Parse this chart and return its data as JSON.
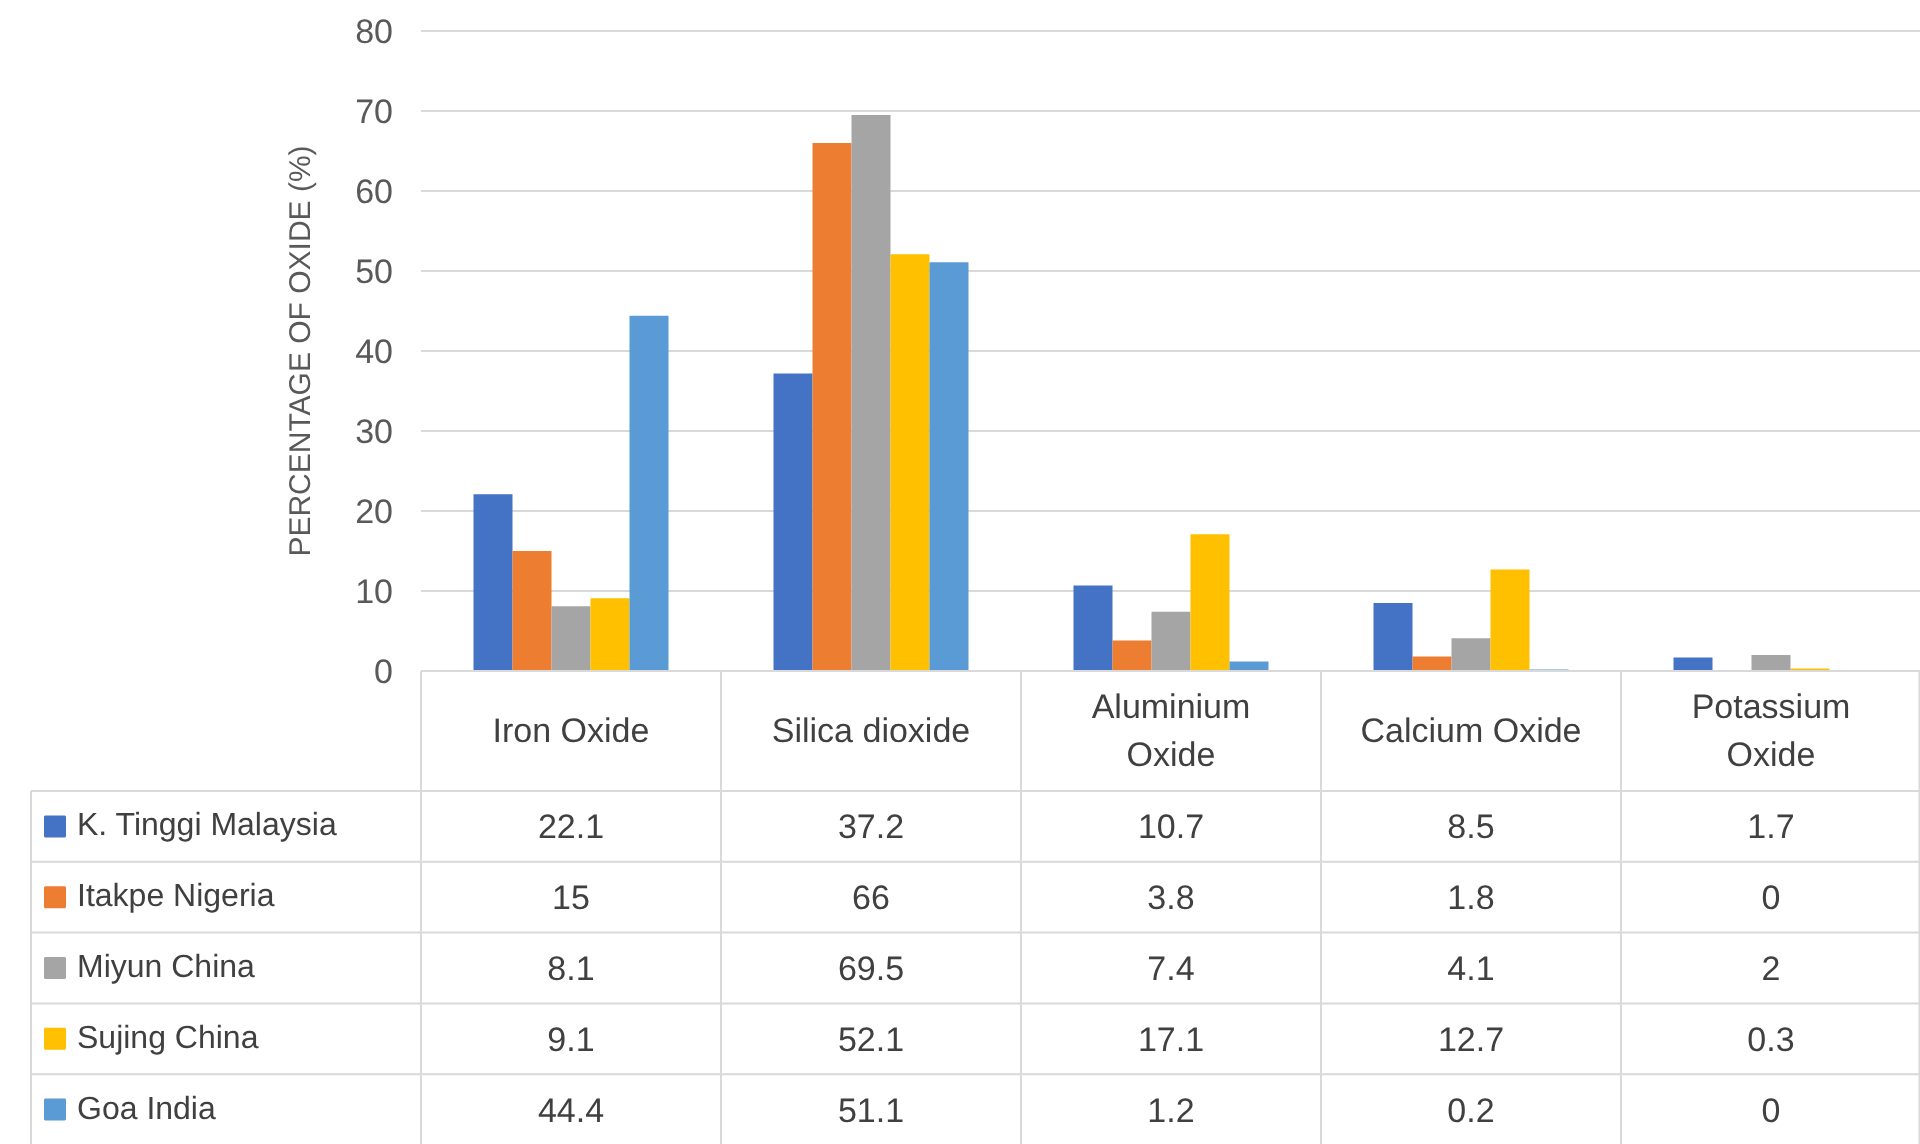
{
  "chart_data": {
    "type": "bar",
    "ylabel": "PERCENTAGE OF OXIDE (%)",
    "categories": [
      "Iron Oxide",
      "Silica dioxide",
      "Aluminium Oxide",
      "Calcium Oxide",
      "Potassium Oxide"
    ],
    "series": [
      {
        "name": "K. Tinggi Malaysia",
        "color": "#4472c4",
        "values": [
          22.1,
          37.2,
          10.7,
          8.5,
          1.7
        ]
      },
      {
        "name": "Itakpe Nigeria",
        "color": "#ed7d31",
        "values": [
          15,
          66,
          3.8,
          1.8,
          0
        ]
      },
      {
        "name": "Miyun China",
        "color": "#a5a5a5",
        "values": [
          8.1,
          69.5,
          7.4,
          4.1,
          2
        ]
      },
      {
        "name": "Sujing China",
        "color": "#ffc000",
        "values": [
          9.1,
          52.1,
          17.1,
          12.7,
          0.3
        ]
      },
      {
        "name": "Goa India",
        "color": "#5b9bd5",
        "values": [
          44.4,
          51.1,
          1.2,
          0.2,
          0
        ]
      }
    ],
    "ylim": [
      0,
      80
    ],
    "yticks": [
      0,
      10,
      20,
      30,
      40,
      50,
      60,
      70,
      80
    ],
    "grid": "y",
    "data_labels": true,
    "legend": "bottom"
  }
}
